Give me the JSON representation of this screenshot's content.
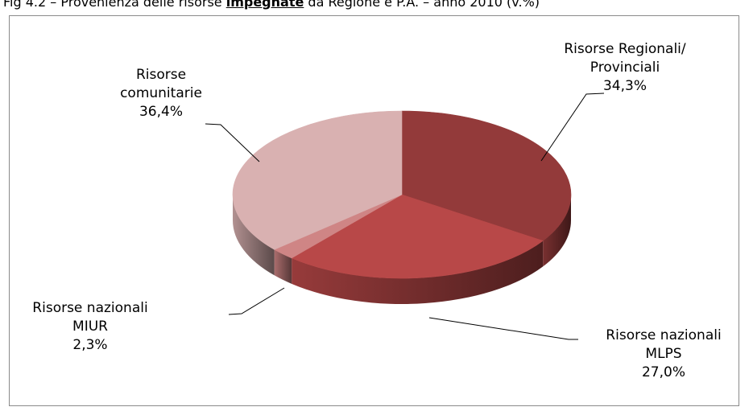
{
  "title": {
    "prefix": "Fig 4.2 – Provenienza delle risorse ",
    "emphasis": "impegnate",
    "suffix": " da Regione e P.A. – anno 2010 (v.%)"
  },
  "chart_data": {
    "type": "pie",
    "style": "3d",
    "legend": "none",
    "slices": [
      {
        "label_lines": [
          "Risorse Regionali/",
          "Provinciali"
        ],
        "value": 34.3,
        "value_label": "34,3%",
        "color": "#933a3a"
      },
      {
        "label_lines": [
          "Risorse nazionali",
          "MLPS"
        ],
        "value": 27.0,
        "value_label": "27,0%",
        "color": "#b84848"
      },
      {
        "label_lines": [
          "Risorse nazionali",
          "MIUR"
        ],
        "value": 2.3,
        "value_label": "2,3%",
        "color": "#cf8585"
      },
      {
        "label_lines": [
          "Risorse",
          "comunitarie"
        ],
        "value": 36.4,
        "value_label": "36,4%",
        "color": "#d9b1b1"
      }
    ]
  }
}
